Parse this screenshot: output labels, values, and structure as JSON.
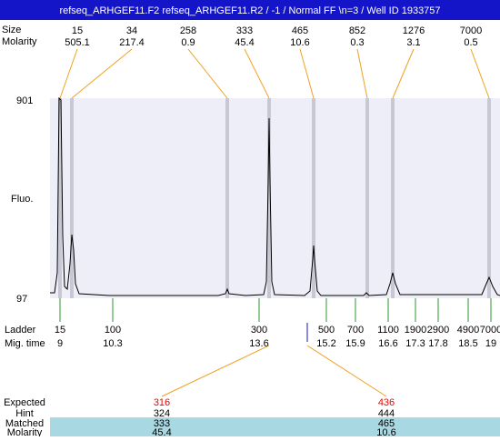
{
  "header": {
    "title": "refseq_ARHGEF11.F2  refseq_ARHGEF11.R2 / -1 / Normal FF \\n=3 / Well ID 1933757"
  },
  "peaks": {
    "size_label": "Size",
    "molarity_label": "Molarity",
    "sizes": [
      15,
      34,
      258,
      333,
      465,
      852,
      1276,
      7000
    ],
    "molarities": [
      505.1,
      217.4,
      0.9,
      45.4,
      10.6,
      0.3,
      3.1,
      0.5
    ]
  },
  "axis": {
    "top": 901,
    "bottom": 97,
    "label": "Fluo."
  },
  "ladder": {
    "label": "Ladder",
    "mig_label": "Mig. time",
    "sizes": [
      15,
      100,
      300,
      500,
      700,
      1100,
      1900,
      2900,
      4900,
      7000
    ],
    "mig_times": [
      9,
      10.3,
      13.6,
      15.2,
      15.9,
      16.6,
      17.3,
      17.8,
      18.5,
      19
    ]
  },
  "expected": {
    "label": "Expected",
    "values": [
      316,
      436
    ]
  },
  "hint": {
    "label": "Hint",
    "values": [
      324,
      444
    ]
  },
  "matched": {
    "label": "Matched",
    "values": [
      333,
      465
    ]
  },
  "molarity": {
    "label": "Molarity",
    "values": [
      45.4,
      10.6
    ]
  }
}
